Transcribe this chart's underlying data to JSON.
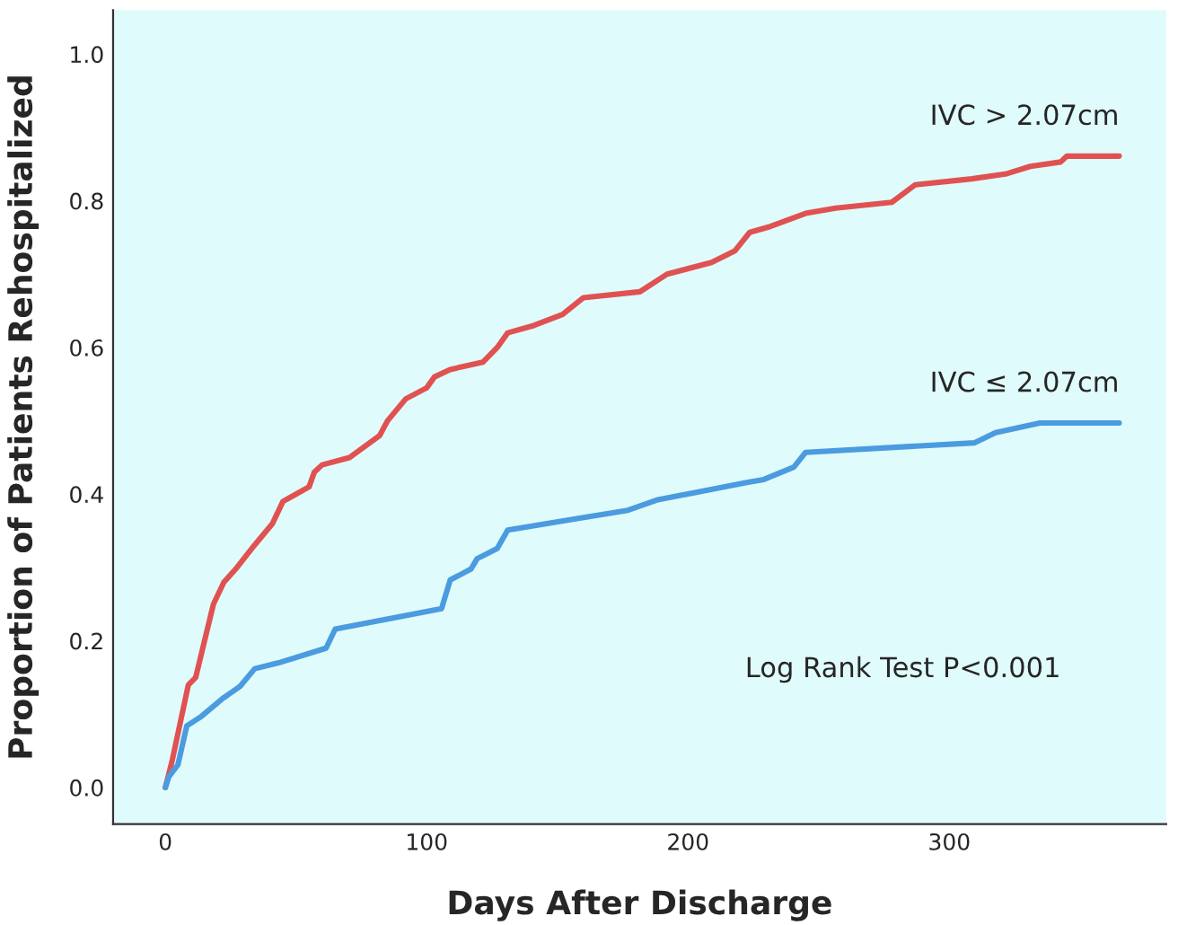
{
  "chart_data": {
    "type": "line",
    "xlabel": "Days After Discharge",
    "ylabel": "Proportion of Patients Rehospitalized",
    "annotations": [
      "Log Rank Test P<0.001"
    ],
    "xlim": [
      -20,
      383
    ],
    "ylim": [
      -0.05,
      1.06
    ],
    "xticks": [
      0,
      100,
      200,
      300
    ],
    "yticks": [
      {
        "value": 0,
        "label": "0.0"
      },
      {
        "value": 0.2,
        "label": "0.2"
      },
      {
        "value": 0.4,
        "label": "0.4"
      },
      {
        "value": 0.6,
        "label": "0.6"
      },
      {
        "value": 0.8,
        "label": "0.8"
      },
      {
        "value": 1.0,
        "label": "1.0"
      }
    ],
    "grid": false,
    "legend": false,
    "series": [
      {
        "name": "IVC > 2.07cm",
        "color": "#e05252",
        "x": [
          0,
          2.5,
          8.8,
          11.6,
          15,
          18.4,
          22.4,
          27.4,
          34,
          41,
          45,
          50,
          55,
          57,
          60,
          70.5,
          82,
          85,
          92,
          100,
          103,
          109,
          121.5,
          127,
          131,
          141,
          152,
          160,
          181.6,
          192,
          209,
          218,
          223.6,
          231.5,
          245,
          256.5,
          278,
          287,
          308.6,
          322,
          331,
          342.6,
          345,
          365
        ],
        "values": [
          0,
          0.035,
          0.14,
          0.15,
          0.2,
          0.25,
          0.28,
          0.3,
          0.33,
          0.36,
          0.39,
          0.4,
          0.41,
          0.43,
          0.44,
          0.45,
          0.48,
          0.5,
          0.53,
          0.545,
          0.56,
          0.57,
          0.58,
          0.6,
          0.62,
          0.63,
          0.645,
          0.668,
          0.676,
          0.7,
          0.716,
          0.732,
          0.757,
          0.765,
          0.783,
          0.79,
          0.798,
          0.822,
          0.83,
          0.837,
          0.847,
          0.853,
          0.861,
          0.861
        ]
      },
      {
        "name": "IVC ≤ 2.07cm",
        "color": "#4a9be0",
        "x": [
          0,
          1.4,
          4.8,
          8.2,
          13.8,
          21.8,
          28.6,
          34.2,
          43.3,
          61.5,
          65,
          105.7,
          109,
          117,
          119.3,
          127,
          131,
          158,
          177,
          188,
          222.5,
          229,
          240.5,
          245,
          309.7,
          317.7,
          334.7,
          365
        ],
        "values": [
          0,
          0.015,
          0.031,
          0.084,
          0.097,
          0.121,
          0.138,
          0.162,
          0.17,
          0.19,
          0.216,
          0.244,
          0.283,
          0.298,
          0.312,
          0.326,
          0.351,
          0.367,
          0.378,
          0.392,
          0.416,
          0.42,
          0.437,
          0.457,
          0.47,
          0.484,
          0.497,
          0.497
        ]
      }
    ]
  }
}
